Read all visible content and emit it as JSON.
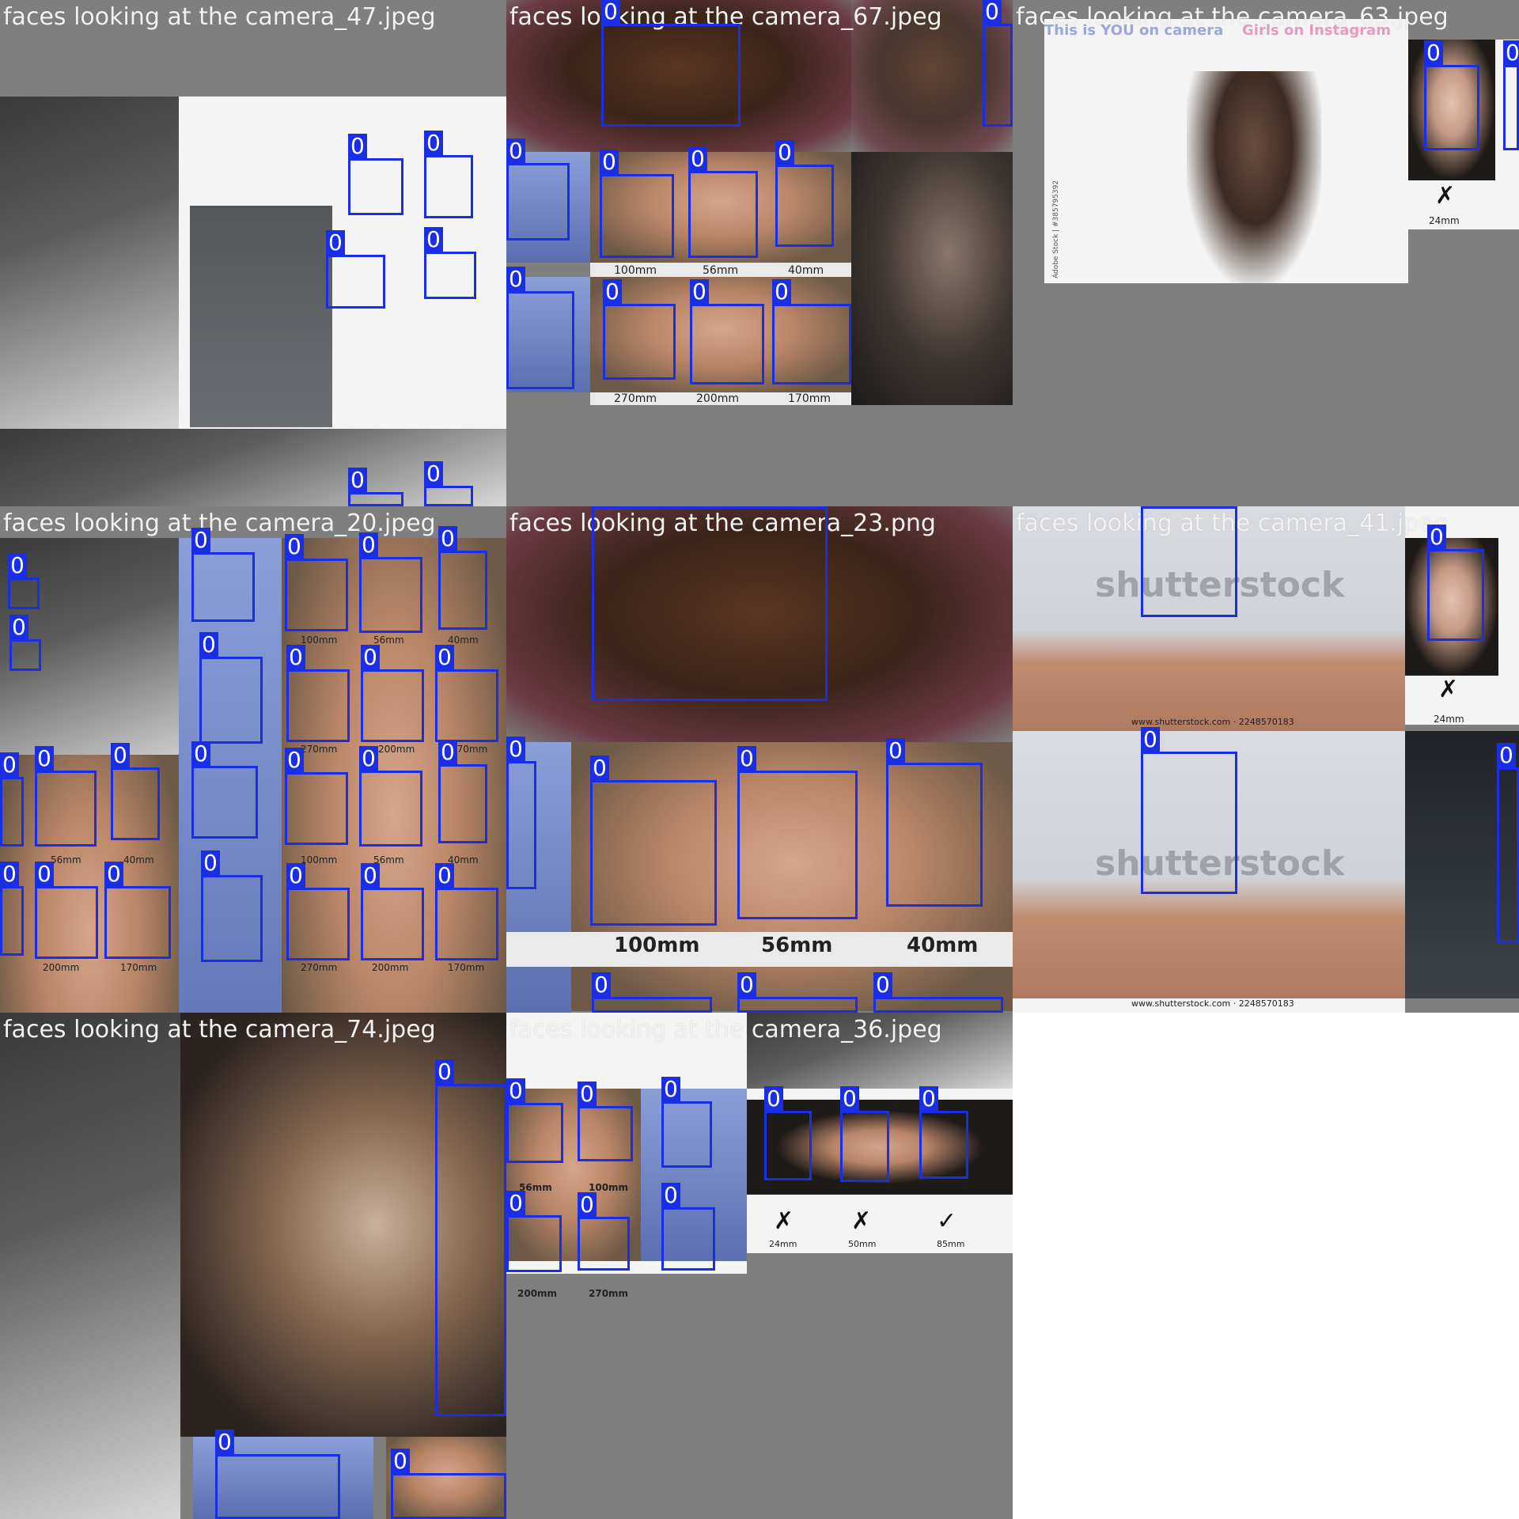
{
  "grid": {
    "background": "#ffffff",
    "box_color": "#1a2ee6",
    "tiles": [
      {
        "title": "faces looking at the camera_47.jpeg",
        "texts": [],
        "boxes": [
          "0",
          "0",
          "0",
          "0",
          "0",
          "0"
        ]
      },
      {
        "title": "faces looking at the camera_67.jpeg",
        "texts": [
          "100mm",
          "56mm",
          "40mm",
          "270mm",
          "200mm",
          "170mm"
        ],
        "boxes": [
          "0",
          "0",
          "0",
          "0",
          "0",
          "0",
          "0",
          "0",
          "0",
          "0"
        ]
      },
      {
        "title": "faces looking at the camera_63.jpeg",
        "texts": [
          "This is YOU on camera",
          "Girls on Instagram",
          "Adobe Stock | #385795392",
          "24mm"
        ],
        "boxes": [
          "0",
          "0"
        ]
      },
      {
        "title": "faces looking at the camera_20.jpeg",
        "texts": [
          "100mm",
          "56mm",
          "40mm",
          "270mm",
          "200mm",
          "170mm",
          "56mm",
          "40mm",
          "100mm",
          "56mm",
          "40mm",
          "200mm",
          "170mm",
          "270mm",
          "200mm",
          "170mm"
        ],
        "boxes": [
          "0",
          "0",
          "0",
          "0",
          "0",
          "0",
          "0",
          "0",
          "0",
          "0",
          "0",
          "0",
          "0",
          "0",
          "0",
          "0",
          "0",
          "0",
          "0",
          "0",
          "0",
          "0",
          "0",
          "0"
        ]
      },
      {
        "title": "faces looking at the camera_23.png",
        "texts": [
          "100mm",
          "56mm",
          "40mm"
        ],
        "boxes": [
          "0",
          "0",
          "0",
          "0",
          "0",
          "0",
          "0",
          "0"
        ]
      },
      {
        "title": "faces looking at the camera_41.jpeg",
        "texts": [
          "shutterstock",
          "www.shutterstock.com · 2248570183",
          "24mm",
          "shutterstock",
          "www.shutterstock.com · 2248570183"
        ],
        "boxes": [
          "0",
          "0",
          "0",
          "0"
        ]
      },
      {
        "title": "faces looking at the camera_74.jpeg",
        "texts": [],
        "boxes": [
          "0",
          "0",
          "0"
        ]
      },
      {
        "title": "faces looking at the camera_36.jpeg",
        "texts": [
          "56mm",
          "100mm",
          "200mm",
          "270mm",
          "24mm",
          "50mm",
          "85mm"
        ],
        "boxes": [
          "0",
          "0",
          "0",
          "0",
          "0",
          "0",
          "0",
          "0",
          "0"
        ]
      }
    ]
  }
}
